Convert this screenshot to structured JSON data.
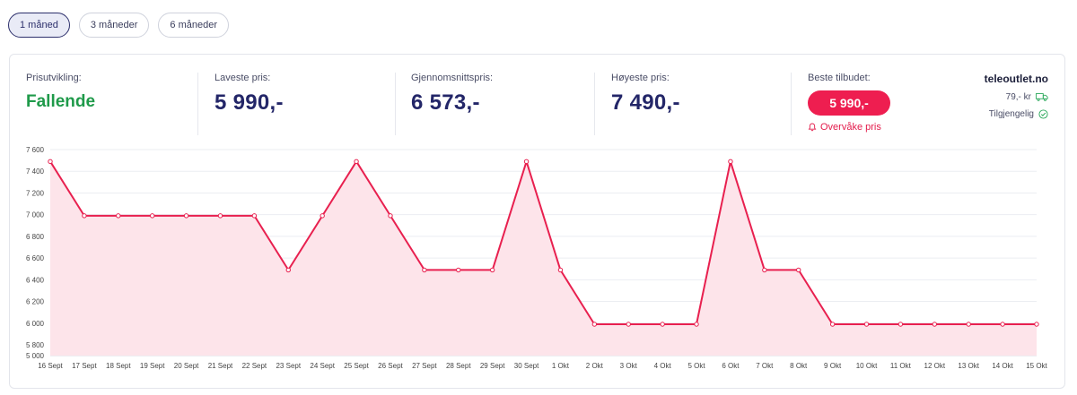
{
  "tabs": [
    {
      "label": "1 måned",
      "active": true
    },
    {
      "label": "3 måneder",
      "active": false
    },
    {
      "label": "6 måneder",
      "active": false
    }
  ],
  "stats": {
    "trend_label": "Prisutvikling:",
    "trend_value": "Fallende",
    "lowest_label": "Laveste pris:",
    "lowest_value": "5 990,-",
    "average_label": "Gjennomsnittspris:",
    "average_value": "6 573,-",
    "highest_label": "Høyeste pris:",
    "highest_value": "7 490,-"
  },
  "best_offer": {
    "label": "Beste tilbudet:",
    "price": "5 990,-",
    "watch_label": "Overvåke pris"
  },
  "shop": {
    "name": "teleoutlet.no",
    "shipping": "79,- kr",
    "availability": "Tilgjengelig"
  },
  "colors": {
    "accent": "#ee1e50",
    "line": "#e8204f",
    "fill": "#fde4ea",
    "trend": "#1f9a4a",
    "navy": "#232668"
  },
  "chart_data": {
    "type": "area",
    "title": "",
    "xlabel": "",
    "ylabel": "",
    "ylim": [
      5000,
      7600
    ],
    "yticks": [
      "7 600",
      "7 400",
      "7 200",
      "7 000",
      "6 800",
      "6 600",
      "6 400",
      "6 200",
      "6 000",
      "5 800",
      "5 000"
    ],
    "categories": [
      "16 Sept",
      "17 Sept",
      "18 Sept",
      "19 Sept",
      "20 Sept",
      "21 Sept",
      "22 Sept",
      "23 Sept",
      "24 Sept",
      "25 Sept",
      "26 Sept",
      "27 Sept",
      "28 Sept",
      "29 Sept",
      "30 Sept",
      "1 Okt",
      "2 Okt",
      "3 Okt",
      "4 Okt",
      "5 Okt",
      "6 Okt",
      "7 Okt",
      "8 Okt",
      "9 Okt",
      "10 Okt",
      "11 Okt",
      "12 Okt",
      "13 Okt",
      "14 Okt",
      "15 Okt"
    ],
    "series": [
      {
        "name": "Pris",
        "values": [
          7490,
          6990,
          6990,
          6990,
          6990,
          6990,
          6990,
          6490,
          6990,
          7490,
          6990,
          6490,
          6490,
          6490,
          7490,
          6490,
          5990,
          5990,
          5990,
          5990,
          7490,
          6490,
          6490,
          5990,
          5990,
          5990,
          5990,
          5990,
          5990,
          5990
        ]
      }
    ],
    "grid": true
  }
}
